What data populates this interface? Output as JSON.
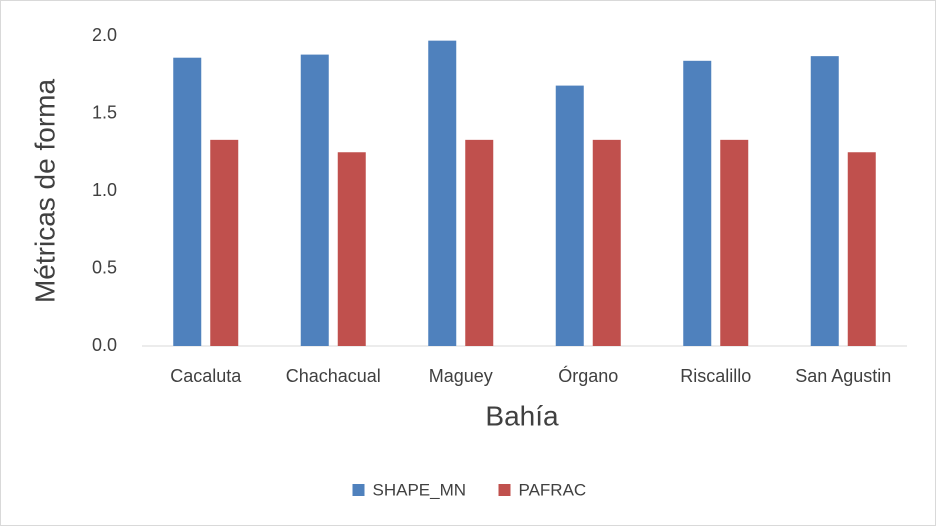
{
  "chart_data": {
    "type": "bar",
    "xlabel": "Bahía",
    "ylabel": "Métricas de forma",
    "categories": [
      "Cacaluta",
      "Chachacual",
      "Maguey",
      "Órgano",
      "Riscalillo",
      "San Agustin"
    ],
    "series": [
      {
        "name": "SHAPE_MN",
        "color": "#4f81bd",
        "values": [
          1.86,
          1.88,
          1.97,
          1.68,
          1.84,
          1.87
        ]
      },
      {
        "name": "PAFRAC",
        "color": "#c0504d",
        "values": [
          1.33,
          1.25,
          1.33,
          1.33,
          1.33,
          1.25
        ]
      }
    ],
    "ylim": [
      0,
      2.0
    ],
    "yticks": [
      {
        "value": 0,
        "label": "0.0"
      },
      {
        "value": 0.5,
        "label": "0.5"
      },
      {
        "value": 1,
        "label": "1.0"
      },
      {
        "value": 1.5,
        "label": "1.5"
      },
      {
        "value": 2,
        "label": "2.0"
      }
    ],
    "grid": false,
    "legend": "bottom"
  }
}
